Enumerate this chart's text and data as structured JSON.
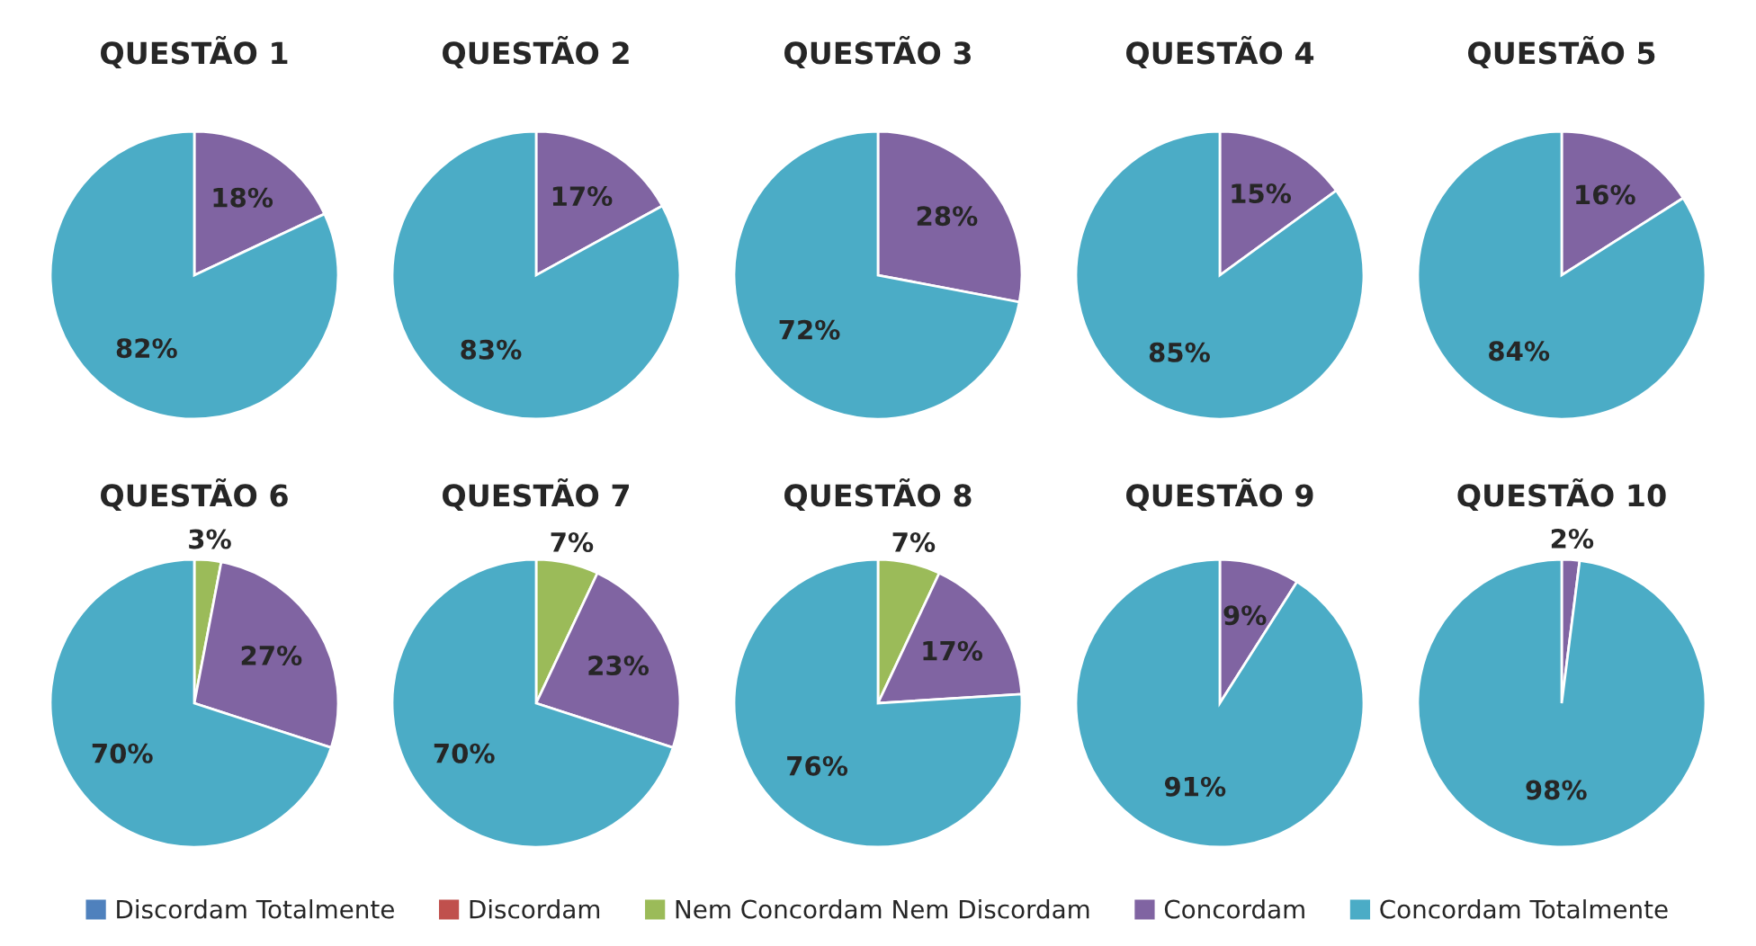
{
  "chart_data": [
    {
      "type": "pie",
      "title": "QUESTÃO 1",
      "categories": [
        "Discordam Totalmente",
        "Discordam",
        "Nem Concordam Nem Discordam",
        "Concordam",
        "Concordam Totalmente"
      ],
      "values": [
        0,
        0,
        0,
        18,
        82
      ],
      "value_labels": [
        null,
        null,
        null,
        "18%",
        "82%"
      ],
      "colors": [
        "#4f81bd",
        "#c0504d",
        "#9bbb59",
        "#8064a2",
        "#4bacc6"
      ],
      "legend": "bottom"
    },
    {
      "type": "pie",
      "title": "QUESTÃO 2",
      "categories": [
        null,
        null,
        null,
        null,
        null
      ],
      "values": [
        0,
        0,
        0,
        17,
        83
      ],
      "value_labels": [
        null,
        null,
        null,
        "17%",
        "83%"
      ],
      "colors": [
        "#4f81bd",
        "#c0504d",
        "#9bbb59",
        "#8064a2",
        "#4bacc6"
      ]
    },
    {
      "type": "pie",
      "title": "QUESTÃO 3",
      "categories": [
        null,
        null,
        null,
        null,
        null
      ],
      "values": [
        0,
        0,
        0,
        28,
        72
      ],
      "value_labels": [
        null,
        null,
        null,
        "28%",
        "72%"
      ],
      "colors": [
        "#4f81bd",
        "#c0504d",
        "#9bbb59",
        "#8064a2",
        "#4bacc6"
      ]
    },
    {
      "type": "pie",
      "title": "QUESTÃO 4",
      "categories": [
        null,
        null,
        null,
        null,
        null
      ],
      "values": [
        0,
        0,
        0,
        15,
        85
      ],
      "value_labels": [
        null,
        null,
        null,
        "15%",
        "85%"
      ],
      "colors": [
        "#4f81bd",
        "#c0504d",
        "#9bbb59",
        "#8064a2",
        "#4bacc6"
      ]
    },
    {
      "type": "pie",
      "title": "QUESTÃO 5",
      "categories": [
        null,
        null,
        null,
        null,
        null
      ],
      "values": [
        0,
        0,
        0,
        16,
        84
      ],
      "value_labels": [
        null,
        null,
        null,
        "16%",
        "84%"
      ],
      "colors": [
        "#4f81bd",
        "#c0504d",
        "#9bbb59",
        "#8064a2",
        "#4bacc6"
      ]
    },
    {
      "type": "pie",
      "title": "QUESTÃO 6",
      "categories": [
        null,
        null,
        null,
        null,
        null
      ],
      "values": [
        0,
        0,
        3,
        27,
        70
      ],
      "value_labels": [
        null,
        null,
        "3%",
        "27%",
        "70%"
      ],
      "colors": [
        "#4f81bd",
        "#c0504d",
        "#9bbb59",
        "#8064a2",
        "#4bacc6"
      ]
    },
    {
      "type": "pie",
      "title": "QUESTÃO 7",
      "categories": [
        null,
        null,
        null,
        null,
        null
      ],
      "values": [
        0,
        0,
        7,
        23,
        70
      ],
      "value_labels": [
        null,
        null,
        "7%",
        "23%",
        "70%"
      ],
      "colors": [
        "#4f81bd",
        "#c0504d",
        "#9bbb59",
        "#8064a2",
        "#4bacc6"
      ]
    },
    {
      "type": "pie",
      "title": "QUESTÃO 8",
      "categories": [
        null,
        null,
        null,
        null,
        null
      ],
      "values": [
        0,
        0,
        7,
        17,
        76
      ],
      "value_labels": [
        null,
        null,
        "7%",
        "17%",
        "76%"
      ],
      "colors": [
        "#4f81bd",
        "#c0504d",
        "#9bbb59",
        "#8064a2",
        "#4bacc6"
      ]
    },
    {
      "type": "pie",
      "title": "QUESTÃO 9",
      "categories": [
        null,
        null,
        null,
        null,
        null
      ],
      "values": [
        0,
        0,
        0,
        9,
        91
      ],
      "value_labels": [
        null,
        null,
        null,
        "9%",
        "91%"
      ],
      "colors": [
        "#4f81bd",
        "#c0504d",
        "#9bbb59",
        "#8064a2",
        "#4bacc6"
      ]
    },
    {
      "type": "pie",
      "title": "QUESTÃO 10",
      "categories": [
        null,
        null,
        null,
        null,
        null
      ],
      "values": [
        0,
        0,
        0,
        2,
        98
      ],
      "value_labels": [
        null,
        null,
        null,
        "2%",
        "98%"
      ],
      "colors": [
        "#4f81bd",
        "#c0504d",
        "#9bbb59",
        "#8064a2",
        "#4bacc6"
      ]
    }
  ]
}
